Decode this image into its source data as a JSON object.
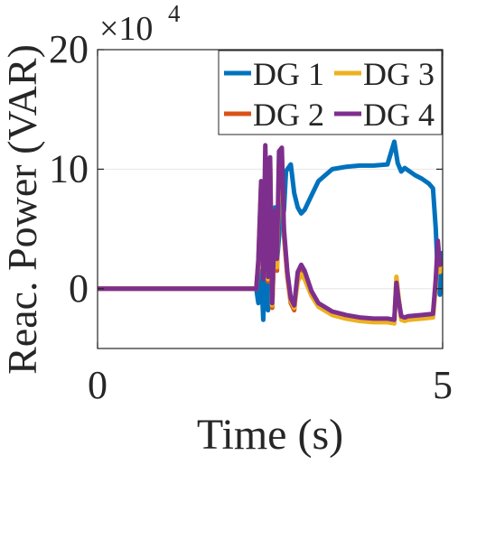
{
  "chart_data": {
    "type": "line",
    "title": "",
    "xlabel": "Time (s)",
    "ylabel": "Reac. Power (VAR)",
    "y_multiplier_label": "×10",
    "y_multiplier_exponent": "4",
    "xlim": [
      0,
      5
    ],
    "ylim": [
      -5,
      20
    ],
    "x_ticks": [
      0,
      5
    ],
    "x_tick_labels": [
      "0",
      "5"
    ],
    "y_ticks": [
      0,
      10,
      20
    ],
    "y_tick_labels": [
      "0",
      "10",
      "20"
    ],
    "grid": true,
    "legend_placement": "top-right",
    "colors": {
      "DG 1": "#0072BD",
      "DG 2": "#D95319",
      "DG 3": "#EDB120",
      "DG 4": "#7E2F8E"
    },
    "series": [
      {
        "name": "DG 1",
        "x": [
          0,
          2.3,
          2.33,
          2.37,
          2.4,
          2.43,
          2.47,
          2.5,
          2.53,
          2.57,
          2.6,
          2.63,
          2.67,
          2.7,
          2.73,
          2.75,
          2.8,
          2.85,
          2.9,
          2.95,
          3.0,
          3.1,
          3.2,
          3.4,
          3.6,
          3.8,
          4.0,
          4.2,
          4.3,
          4.35,
          4.4,
          4.45,
          4.5,
          4.6,
          4.7,
          4.8,
          4.86,
          4.9,
          4.93,
          4.96,
          5.0
        ],
        "y": [
          0,
          0,
          -1.2,
          1.5,
          -2.6,
          3.2,
          -1.8,
          5.2,
          -1.5,
          6.8,
          2.2,
          4.4,
          8.8,
          6.5,
          9.8,
          10.0,
          10.4,
          8.0,
          6.8,
          6.3,
          6.6,
          7.8,
          9.0,
          10.0,
          10.2,
          10.3,
          10.3,
          10.4,
          12.3,
          10.5,
          9.8,
          10.1,
          9.9,
          9.5,
          9.2,
          8.8,
          8.4,
          5.0,
          1.0,
          -0.5,
          3.0
        ]
      },
      {
        "name": "DG 2",
        "x": [
          0,
          2.3,
          2.33,
          2.37,
          2.4,
          2.43,
          2.47,
          2.5,
          2.53,
          2.57,
          2.6,
          2.63,
          2.67,
          2.7,
          2.75,
          2.8,
          2.85,
          2.9,
          2.95,
          3.0,
          3.1,
          3.2,
          3.4,
          3.6,
          3.8,
          4.0,
          4.2,
          4.3,
          4.33,
          4.36,
          4.4,
          4.45,
          4.5,
          4.7,
          4.86,
          4.9,
          4.93,
          4.96,
          5.0
        ],
        "y": [
          0,
          0,
          2.0,
          8.6,
          1.0,
          9.4,
          0.6,
          10.6,
          -1.6,
          5.5,
          1.5,
          10.5,
          11.0,
          4.5,
          1.0,
          -1.2,
          -1.8,
          1.2,
          1.8,
          1.2,
          -0.4,
          -1.3,
          -2.0,
          -2.3,
          -2.5,
          -2.6,
          -2.6,
          -2.7,
          0.6,
          -0.8,
          -2.4,
          -2.5,
          -2.4,
          -2.3,
          -2.2,
          0.5,
          3.2,
          1.6,
          2.0
        ]
      },
      {
        "name": "DG 3",
        "x": [
          0,
          2.3,
          2.33,
          2.37,
          2.4,
          2.43,
          2.47,
          2.5,
          2.53,
          2.57,
          2.6,
          2.63,
          2.67,
          2.7,
          2.75,
          2.8,
          2.85,
          2.9,
          2.95,
          3.0,
          3.1,
          3.2,
          3.4,
          3.6,
          3.8,
          4.0,
          4.2,
          4.3,
          4.33,
          4.36,
          4.4,
          4.45,
          4.5,
          4.7,
          4.86,
          4.9,
          4.93,
          4.96,
          5.0
        ],
        "y": [
          0,
          0,
          2.2,
          8.8,
          1.2,
          9.6,
          0.8,
          10.0,
          -1.4,
          6.0,
          1.8,
          10.2,
          10.8,
          4.8,
          1.2,
          -1.0,
          -1.6,
          0.6,
          1.2,
          0.8,
          -0.6,
          -1.5,
          -2.2,
          -2.5,
          -2.7,
          -2.8,
          -2.8,
          -2.9,
          1.0,
          -0.6,
          -2.6,
          -2.7,
          -2.6,
          -2.5,
          -2.4,
          0.2,
          3.6,
          1.4,
          1.8
        ]
      },
      {
        "name": "DG 4",
        "x": [
          0,
          2.3,
          2.33,
          2.37,
          2.4,
          2.43,
          2.47,
          2.5,
          2.53,
          2.57,
          2.6,
          2.63,
          2.67,
          2.7,
          2.75,
          2.8,
          2.85,
          2.9,
          2.95,
          3.0,
          3.1,
          3.2,
          3.4,
          3.6,
          3.8,
          4.0,
          4.2,
          4.3,
          4.33,
          4.36,
          4.4,
          4.45,
          4.5,
          4.7,
          4.86,
          4.9,
          4.93,
          4.96,
          5.0
        ],
        "y": [
          0,
          0,
          2.4,
          9.0,
          0.8,
          12.0,
          1.0,
          11.0,
          -1.2,
          6.5,
          2.5,
          11.5,
          11.8,
          5.0,
          1.4,
          -0.8,
          -1.4,
          1.4,
          2.0,
          1.5,
          -0.2,
          -1.2,
          -1.9,
          -2.2,
          -2.4,
          -2.5,
          -2.5,
          -2.6,
          0.5,
          -0.9,
          -2.3,
          -2.4,
          -2.3,
          -2.2,
          -2.1,
          0.8,
          4.0,
          2.0,
          2.2
        ]
      }
    ]
  }
}
